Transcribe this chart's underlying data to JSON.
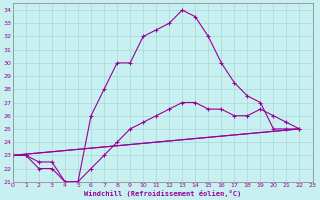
{
  "xlabel": "Windchill (Refroidissement éolien,°C)",
  "background_color": "#c8f0f0",
  "grid_color": "#a8d8d8",
  "line_color": "#990099",
  "xlim": [
    0,
    23
  ],
  "ylim": [
    21,
    34.5
  ],
  "yticks": [
    21,
    22,
    23,
    24,
    25,
    26,
    27,
    28,
    29,
    30,
    31,
    32,
    33,
    34
  ],
  "xticks": [
    0,
    1,
    2,
    3,
    4,
    5,
    6,
    7,
    8,
    9,
    10,
    11,
    12,
    13,
    14,
    15,
    16,
    17,
    18,
    19,
    20,
    21,
    22,
    23
  ],
  "series": [
    {
      "x": [
        0,
        1,
        2,
        3,
        4,
        5,
        6,
        7,
        8,
        9,
        10,
        11,
        12,
        13,
        14,
        15,
        16,
        17,
        18,
        19,
        20,
        21,
        22
      ],
      "y": [
        23.0,
        23.0,
        22.5,
        22.5,
        21.0,
        21.0,
        26.0,
        28.0,
        30.0,
        30.0,
        32.0,
        32.5,
        33.0,
        34.0,
        33.5,
        32.0,
        30.0,
        28.5,
        27.5,
        27.0,
        25.0,
        25.0,
        25.0
      ]
    },
    {
      "x": [
        0,
        1,
        2,
        3,
        4,
        5,
        6,
        7,
        8,
        9,
        10,
        11,
        12,
        13,
        14,
        15,
        16,
        17,
        18,
        19,
        20,
        21,
        22
      ],
      "y": [
        23.0,
        23.0,
        22.0,
        22.0,
        21.0,
        21.0,
        22.0,
        23.0,
        24.0,
        25.0,
        25.5,
        26.0,
        26.5,
        27.0,
        27.0,
        26.5,
        26.5,
        26.0,
        26.0,
        26.5,
        26.0,
        25.5,
        25.0
      ]
    },
    {
      "x": [
        0,
        22
      ],
      "y": [
        23.0,
        25.0
      ]
    },
    {
      "x": [
        0,
        22
      ],
      "y": [
        23.0,
        25.0
      ]
    }
  ]
}
